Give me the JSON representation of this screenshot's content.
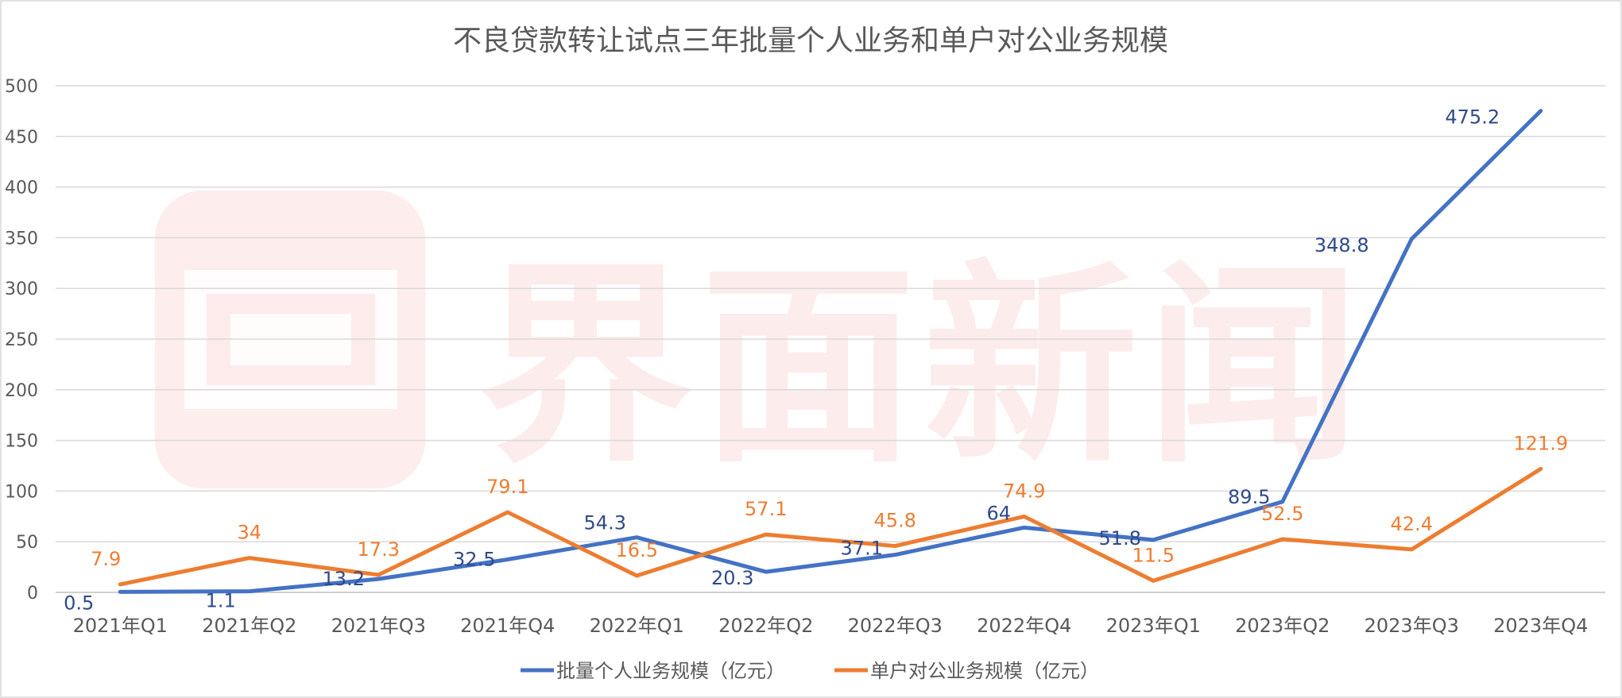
{
  "chart_data": {
    "type": "line",
    "title": "不良贷款转让试点三年批量个人业务和单户对公业务规模",
    "watermark_text": "界面新闻",
    "xlabel": "",
    "ylabel": "",
    "ylim": [
      0,
      500
    ],
    "yticks": [
      0,
      50,
      100,
      150,
      200,
      250,
      300,
      350,
      400,
      450,
      500
    ],
    "grid": true,
    "legend_position": "bottom",
    "categories": [
      "2021年Q1",
      "2021年Q2",
      "2021年Q3",
      "2021年Q4",
      "2022年Q1",
      "2022年Q2",
      "2022年Q3",
      "2022年Q4",
      "2023年Q1",
      "2023年Q2",
      "2023年Q3",
      "2023年Q4"
    ],
    "series": [
      {
        "name": "批量个人业务规模（亿元）",
        "color": "#4472c4",
        "label_color": "#2f4a8a",
        "values": [
          0.5,
          1.1,
          13.2,
          32.5,
          54.3,
          20.3,
          37.1,
          64,
          51.8,
          89.5,
          348.8,
          475.2
        ]
      },
      {
        "name": "单户对公业务规模（亿元）",
        "color": "#ed7d31",
        "label_color": "#ed7d31",
        "values": [
          7.9,
          34,
          17.3,
          79.1,
          16.5,
          57.1,
          45.8,
          74.9,
          11.5,
          52.5,
          42.4,
          121.9
        ]
      }
    ]
  }
}
